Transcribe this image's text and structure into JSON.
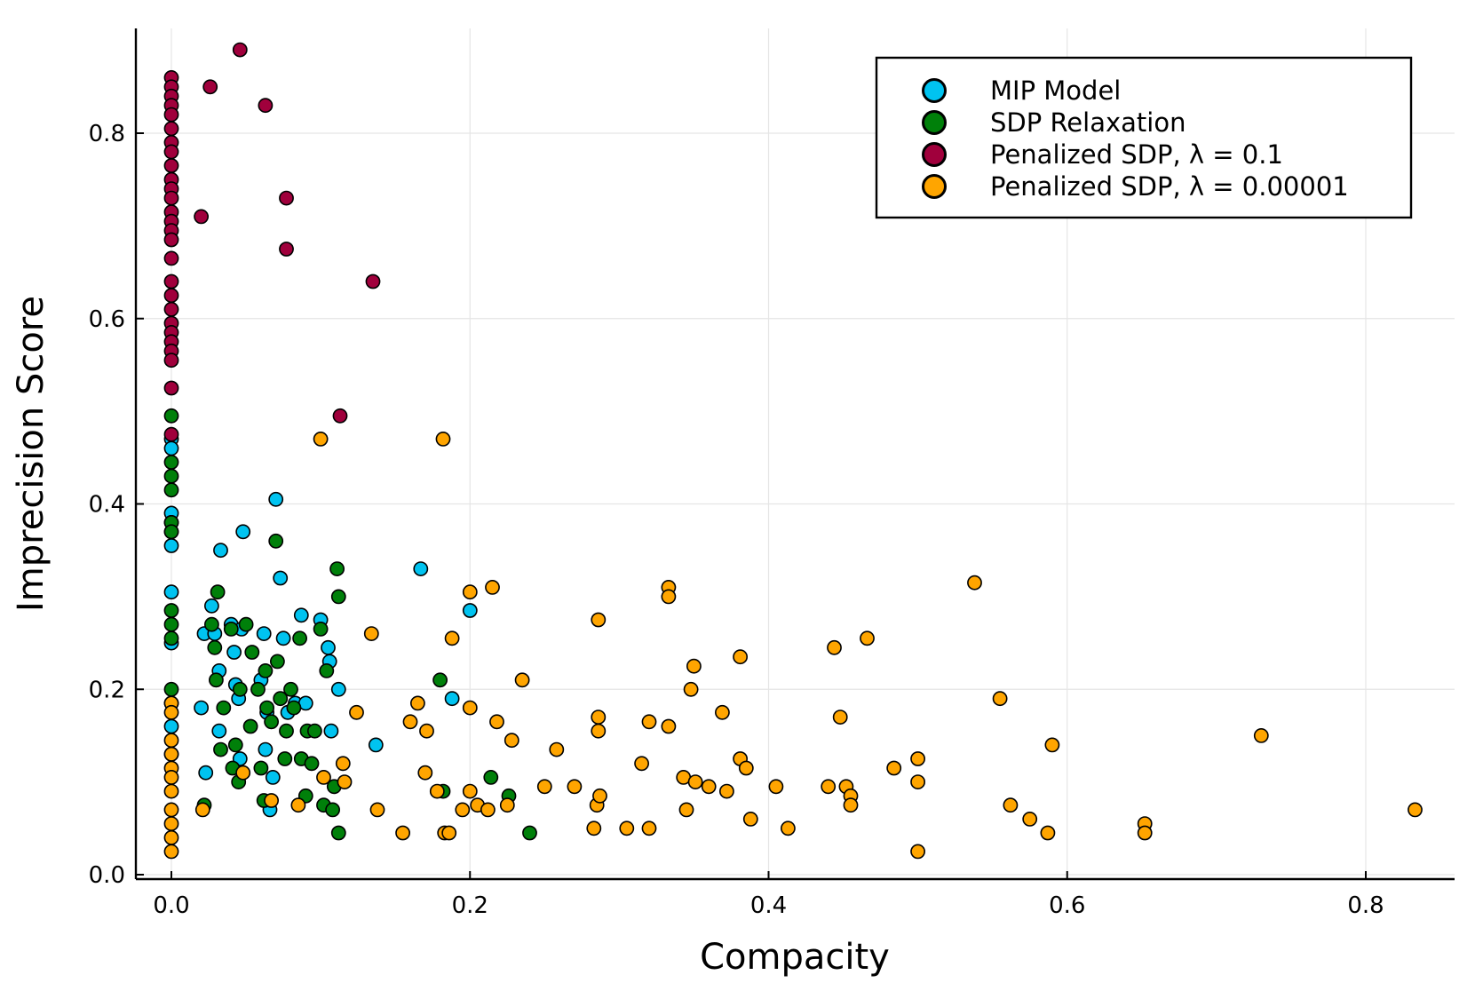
{
  "chart_data": {
    "type": "scatter",
    "xlabel": "Compacity",
    "ylabel": "Imprecision Score",
    "xlim": [
      -0.03,
      0.86
    ],
    "ylim": [
      -0.005,
      0.91
    ],
    "xticks": [
      "0.0",
      "0.2",
      "0.4",
      "0.6",
      "0.8"
    ],
    "yticks": [
      "0.0",
      "0.2",
      "0.4",
      "0.6",
      "0.8"
    ],
    "grid": true,
    "legend_position": "top-right",
    "series": [
      {
        "name": "MIP Model",
        "color": "#00c3f0",
        "points": [
          [
            0,
            0.47
          ],
          [
            0,
            0.46
          ],
          [
            0,
            0.39
          ],
          [
            0,
            0.38
          ],
          [
            0,
            0.37
          ],
          [
            0,
            0.355
          ],
          [
            0,
            0.305
          ],
          [
            0,
            0.25
          ],
          [
            0,
            0.185
          ],
          [
            0,
            0.16
          ],
          [
            0,
            0.13
          ],
          [
            0.02,
            0.18
          ],
          [
            0.022,
            0.26
          ],
          [
            0.023,
            0.11
          ],
          [
            0.027,
            0.29
          ],
          [
            0.029,
            0.26
          ],
          [
            0.032,
            0.155
          ],
          [
            0.032,
            0.22
          ],
          [
            0.033,
            0.35
          ],
          [
            0.04,
            0.27
          ],
          [
            0.042,
            0.24
          ],
          [
            0.043,
            0.205
          ],
          [
            0.045,
            0.19
          ],
          [
            0.046,
            0.125
          ],
          [
            0.047,
            0.265
          ],
          [
            0.048,
            0.37
          ],
          [
            0.06,
            0.21
          ],
          [
            0.062,
            0.26
          ],
          [
            0.063,
            0.135
          ],
          [
            0.064,
            0.175
          ],
          [
            0.066,
            0.07
          ],
          [
            0.068,
            0.105
          ],
          [
            0.07,
            0.405
          ],
          [
            0.073,
            0.32
          ],
          [
            0.075,
            0.255
          ],
          [
            0.078,
            0.175
          ],
          [
            0.083,
            0.185
          ],
          [
            0.087,
            0.28
          ],
          [
            0.09,
            0.185
          ],
          [
            0.1,
            0.275
          ],
          [
            0.105,
            0.245
          ],
          [
            0.106,
            0.23
          ],
          [
            0.107,
            0.155
          ],
          [
            0.112,
            0.2
          ],
          [
            0.137,
            0.14
          ],
          [
            0.167,
            0.33
          ],
          [
            0.188,
            0.19
          ],
          [
            0.2,
            0.285
          ]
        ]
      },
      {
        "name": "SDP Relaxation",
        "color": "#00800a",
        "points": [
          [
            0,
            0.495
          ],
          [
            0,
            0.445
          ],
          [
            0,
            0.43
          ],
          [
            0,
            0.415
          ],
          [
            0,
            0.38
          ],
          [
            0,
            0.37
          ],
          [
            0,
            0.285
          ],
          [
            0,
            0.27
          ],
          [
            0,
            0.255
          ],
          [
            0,
            0.2
          ],
          [
            0.022,
            0.075
          ],
          [
            0.027,
            0.27
          ],
          [
            0.029,
            0.245
          ],
          [
            0.03,
            0.21
          ],
          [
            0.031,
            0.305
          ],
          [
            0.033,
            0.135
          ],
          [
            0.035,
            0.18
          ],
          [
            0.04,
            0.265
          ],
          [
            0.041,
            0.115
          ],
          [
            0.043,
            0.14
          ],
          [
            0.045,
            0.1
          ],
          [
            0.046,
            0.2
          ],
          [
            0.05,
            0.27
          ],
          [
            0.053,
            0.16
          ],
          [
            0.054,
            0.24
          ],
          [
            0.058,
            0.2
          ],
          [
            0.06,
            0.115
          ],
          [
            0.062,
            0.08
          ],
          [
            0.063,
            0.22
          ],
          [
            0.064,
            0.18
          ],
          [
            0.067,
            0.165
          ],
          [
            0.07,
            0.36
          ],
          [
            0.071,
            0.23
          ],
          [
            0.073,
            0.19
          ],
          [
            0.076,
            0.125
          ],
          [
            0.077,
            0.155
          ],
          [
            0.08,
            0.2
          ],
          [
            0.082,
            0.18
          ],
          [
            0.086,
            0.255
          ],
          [
            0.087,
            0.125
          ],
          [
            0.09,
            0.085
          ],
          [
            0.091,
            0.155
          ],
          [
            0.094,
            0.12
          ],
          [
            0.096,
            0.155
          ],
          [
            0.1,
            0.265
          ],
          [
            0.102,
            0.075
          ],
          [
            0.104,
            0.22
          ],
          [
            0.108,
            0.07
          ],
          [
            0.109,
            0.095
          ],
          [
            0.111,
            0.33
          ],
          [
            0.112,
            0.3
          ],
          [
            0.112,
            0.045
          ],
          [
            0.18,
            0.21
          ],
          [
            0.182,
            0.09
          ],
          [
            0.214,
            0.105
          ],
          [
            0.226,
            0.085
          ],
          [
            0.24,
            0.045
          ]
        ]
      },
      {
        "name": "Penalized SDP, λ = 0.1",
        "color": "#a0003c",
        "points": [
          [
            0,
            0.86
          ],
          [
            0,
            0.85
          ],
          [
            0,
            0.84
          ],
          [
            0,
            0.83
          ],
          [
            0,
            0.82
          ],
          [
            0,
            0.805
          ],
          [
            0,
            0.79
          ],
          [
            0,
            0.78
          ],
          [
            0,
            0.765
          ],
          [
            0,
            0.75
          ],
          [
            0,
            0.74
          ],
          [
            0,
            0.73
          ],
          [
            0,
            0.715
          ],
          [
            0,
            0.705
          ],
          [
            0,
            0.695
          ],
          [
            0,
            0.685
          ],
          [
            0,
            0.665
          ],
          [
            0,
            0.64
          ],
          [
            0,
            0.625
          ],
          [
            0,
            0.61
          ],
          [
            0,
            0.595
          ],
          [
            0,
            0.585
          ],
          [
            0,
            0.575
          ],
          [
            0,
            0.565
          ],
          [
            0,
            0.555
          ],
          [
            0,
            0.525
          ],
          [
            0,
            0.475
          ],
          [
            0.02,
            0.71
          ],
          [
            0.026,
            0.85
          ],
          [
            0.046,
            0.89
          ],
          [
            0.063,
            0.83
          ],
          [
            0.077,
            0.73
          ],
          [
            0.077,
            0.675
          ],
          [
            0.113,
            0.495
          ],
          [
            0.135,
            0.64
          ]
        ]
      },
      {
        "name": "Penalized SDP, λ = 0.00001",
        "color": "#ffa500",
        "points": [
          [
            0,
            0.185
          ],
          [
            0,
            0.175
          ],
          [
            0,
            0.145
          ],
          [
            0,
            0.13
          ],
          [
            0,
            0.115
          ],
          [
            0,
            0.105
          ],
          [
            0,
            0.09
          ],
          [
            0,
            0.07
          ],
          [
            0,
            0.055
          ],
          [
            0,
            0.04
          ],
          [
            0,
            0.025
          ],
          [
            0.021,
            0.07
          ],
          [
            0.048,
            0.11
          ],
          [
            0.067,
            0.08
          ],
          [
            0.085,
            0.075
          ],
          [
            0.1,
            0.47
          ],
          [
            0.102,
            0.105
          ],
          [
            0.115,
            0.12
          ],
          [
            0.116,
            0.1
          ],
          [
            0.124,
            0.175
          ],
          [
            0.134,
            0.26
          ],
          [
            0.138,
            0.07
          ],
          [
            0.155,
            0.045
          ],
          [
            0.16,
            0.165
          ],
          [
            0.165,
            0.185
          ],
          [
            0.17,
            0.11
          ],
          [
            0.171,
            0.155
          ],
          [
            0.178,
            0.09
          ],
          [
            0.182,
            0.47
          ],
          [
            0.183,
            0.045
          ],
          [
            0.186,
            0.045
          ],
          [
            0.188,
            0.255
          ],
          [
            0.195,
            0.07
          ],
          [
            0.2,
            0.305
          ],
          [
            0.2,
            0.18
          ],
          [
            0.2,
            0.09
          ],
          [
            0.205,
            0.075
          ],
          [
            0.212,
            0.07
          ],
          [
            0.215,
            0.31
          ],
          [
            0.218,
            0.165
          ],
          [
            0.225,
            0.075
          ],
          [
            0.228,
            0.145
          ],
          [
            0.235,
            0.21
          ],
          [
            0.25,
            0.095
          ],
          [
            0.258,
            0.135
          ],
          [
            0.27,
            0.095
          ],
          [
            0.283,
            0.05
          ],
          [
            0.285,
            0.075
          ],
          [
            0.286,
            0.275
          ],
          [
            0.286,
            0.17
          ],
          [
            0.286,
            0.155
          ],
          [
            0.287,
            0.085
          ],
          [
            0.305,
            0.05
          ],
          [
            0.315,
            0.12
          ],
          [
            0.32,
            0.05
          ],
          [
            0.32,
            0.165
          ],
          [
            0.333,
            0.31
          ],
          [
            0.333,
            0.3
          ],
          [
            0.333,
            0.16
          ],
          [
            0.343,
            0.105
          ],
          [
            0.345,
            0.07
          ],
          [
            0.348,
            0.2
          ],
          [
            0.35,
            0.225
          ],
          [
            0.351,
            0.1
          ],
          [
            0.36,
            0.095
          ],
          [
            0.369,
            0.175
          ],
          [
            0.372,
            0.09
          ],
          [
            0.381,
            0.235
          ],
          [
            0.381,
            0.125
          ],
          [
            0.385,
            0.115
          ],
          [
            0.388,
            0.06
          ],
          [
            0.405,
            0.095
          ],
          [
            0.413,
            0.05
          ],
          [
            0.44,
            0.095
          ],
          [
            0.444,
            0.245
          ],
          [
            0.448,
            0.17
          ],
          [
            0.452,
            0.095
          ],
          [
            0.455,
            0.085
          ],
          [
            0.455,
            0.075
          ],
          [
            0.466,
            0.255
          ],
          [
            0.484,
            0.115
          ],
          [
            0.5,
            0.125
          ],
          [
            0.5,
            0.1
          ],
          [
            0.5,
            0.025
          ],
          [
            0.538,
            0.315
          ],
          [
            0.555,
            0.19
          ],
          [
            0.562,
            0.075
          ],
          [
            0.575,
            0.06
          ],
          [
            0.587,
            0.045
          ],
          [
            0.59,
            0.14
          ],
          [
            0.652,
            0.055
          ],
          [
            0.652,
            0.045
          ],
          [
            0.73,
            0.15
          ],
          [
            0.833,
            0.07
          ]
        ]
      }
    ]
  }
}
